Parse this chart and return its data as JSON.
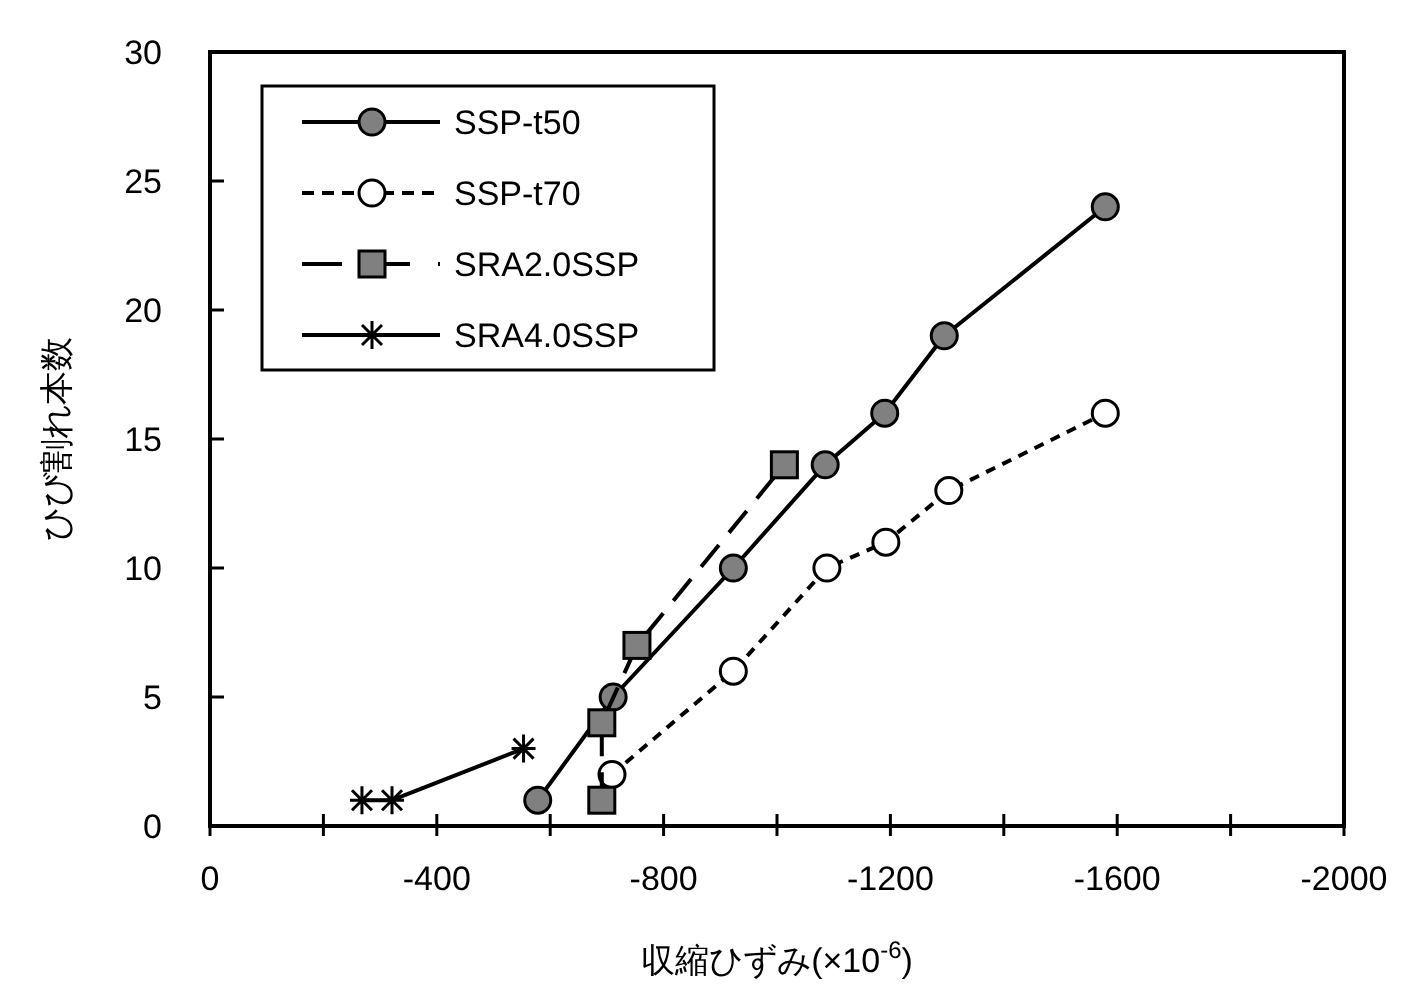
{
  "chart_data": {
    "type": "line",
    "xlabel": "収縮ひずみ(×10$^{-6}$)",
    "ylabel": "ひび割れ本数",
    "xlim": [
      0,
      -2000
    ],
    "ylim": [
      0,
      30
    ],
    "xticks": [
      0,
      {
        "value": -200,
        "label": null
      },
      -400,
      {
        "value": -600,
        "label": null
      },
      -800,
      {
        "value": -1000,
        "label": null
      },
      -1200,
      {
        "value": -1400,
        "label": null
      },
      -1600,
      {
        "value": -1800,
        "label": null
      },
      -2000
    ],
    "yticks": [
      0,
      5,
      10,
      15,
      20,
      25,
      30
    ],
    "grid": false,
    "legend": "top left",
    "series": [
      {
        "name": "SSP-t50",
        "color": "#808080",
        "marker": "circle",
        "line_style": "solid",
        "x": [
          -578,
          -711,
          -923,
          -1085,
          -1190,
          -1295,
          -1579
        ],
        "values": [
          1,
          5,
          10,
          14,
          16,
          19,
          24
        ]
      },
      {
        "name": "SSP-t70",
        "color": "#ffffff",
        "marker": "circle",
        "line_style": "dotted",
        "x": [
          -709,
          -923,
          -1088,
          -1192,
          -1303,
          -1579
        ],
        "values": [
          2,
          6,
          10,
          11,
          13,
          16
        ]
      },
      {
        "name": "SRA2.0SSP",
        "color": "#808080",
        "marker": "square",
        "line_style": "dashed",
        "x": [
          -691,
          -691,
          -753,
          -1013
        ],
        "values": [
          1,
          4,
          7,
          14
        ]
      },
      {
        "name": "SRA4.0SSP",
        "color": "#000000",
        "marker": "cross",
        "line_style": "solid",
        "x": [
          -268,
          -321,
          -553
        ],
        "values": [
          1,
          1,
          3
        ]
      }
    ]
  }
}
